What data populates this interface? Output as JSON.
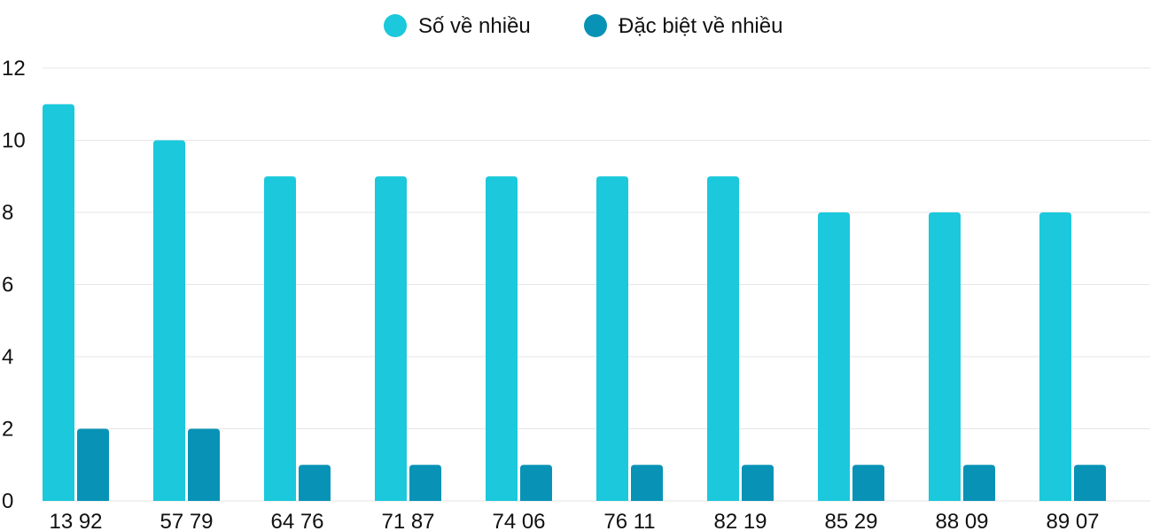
{
  "colors": {
    "series_1": "#1bc8dc",
    "series_2": "#0893b6",
    "grid": "#e6e6e6",
    "text": "#111111"
  },
  "chart_data": {
    "type": "bar",
    "title": "",
    "xlabel": "",
    "ylabel": "",
    "categories": [
      "13 92",
      "57 79",
      "64 76",
      "71 87",
      "74 06",
      "76 11",
      "82 19",
      "85 29",
      "88 09",
      "89 07"
    ],
    "series": [
      {
        "name": "Số về nhiều",
        "values": [
          11,
          10,
          9,
          9,
          9,
          9,
          9,
          8,
          8,
          8
        ]
      },
      {
        "name": "Đặc biệt về nhiều",
        "values": [
          2,
          2,
          1,
          1,
          1,
          1,
          1,
          1,
          1,
          1
        ]
      }
    ],
    "ylim": [
      0,
      12
    ],
    "yticks": [
      0,
      2,
      4,
      6,
      8,
      10,
      12
    ],
    "grid": true,
    "legend_position": "top-center"
  }
}
